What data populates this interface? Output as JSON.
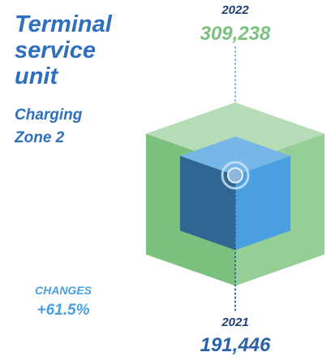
{
  "chart_data": {
    "type": "nested-cube",
    "title": "Terminal service unit",
    "subtitle": "Charging Zone 2",
    "categories": [
      "2022",
      "2021"
    ],
    "values": [
      309238,
      191446
    ],
    "value_labels": [
      "309,238",
      "191,446"
    ],
    "colors": [
      "#7cc27e",
      "#4a9fe0"
    ],
    "annotation": {
      "label": "CHANGES",
      "value": 61.5,
      "value_label": "+61.5%"
    }
  }
}
